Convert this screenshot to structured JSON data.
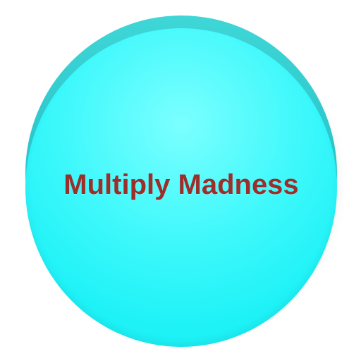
{
  "app": {
    "title": "Multiply Madness",
    "title_color": "#9a2f2c",
    "accent_color": "#1ef2f7"
  },
  "icon": {
    "name": "round-app-icon"
  }
}
